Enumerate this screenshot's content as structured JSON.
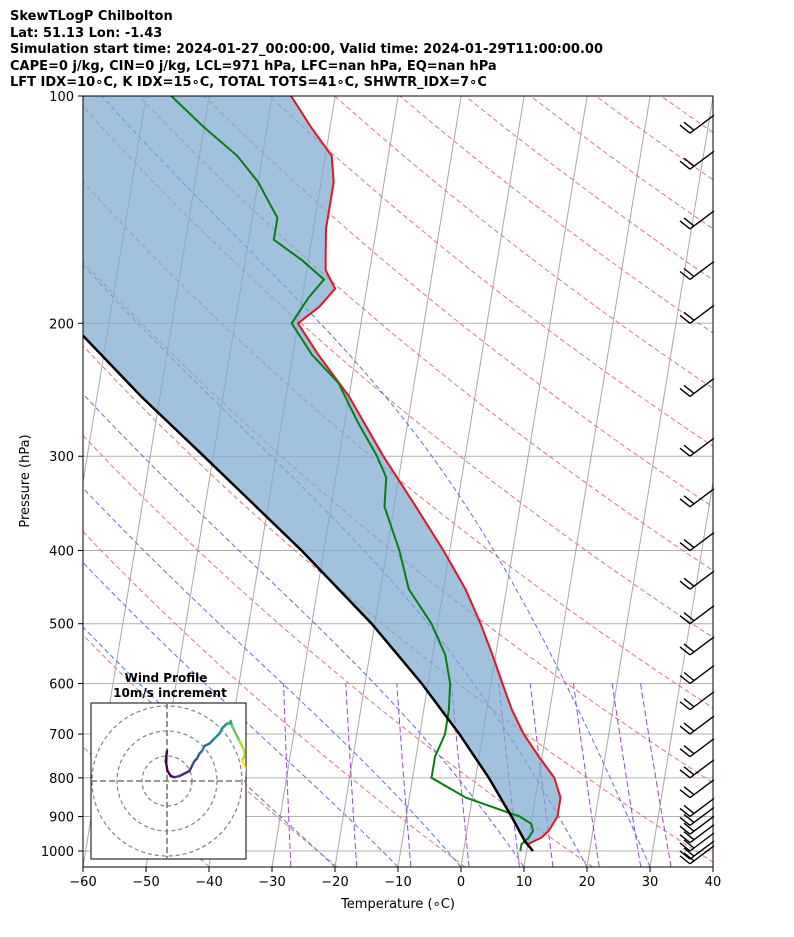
{
  "header": {
    "line1": "SkewTLogP Chilbolton",
    "line2": "Lat: 51.13   Lon: -1.43",
    "line3": "Simulation start time: 2024-01-27_00:00:00, Valid time: 2024-01-29T11:00:00.00",
    "line4": "CAPE=0 j/kg, CIN=0 j/kg, LCL=971 hPa, LFC=nan hPa, EQ=nan hPa",
    "line5": "LFT IDX=10∘C, K IDX=15∘C, TOTAL TOTS=41∘C, SHWTR_IDX=7∘C"
  },
  "chart_data": {
    "type": "line",
    "xlabel": "Temperature (∘C)",
    "ylabel": "Pressure (hPa)",
    "xlim": [
      -60,
      40
    ],
    "ylim": [
      1050,
      100
    ],
    "y_scale": "log",
    "skew": true,
    "grid": true,
    "x_ticks": [
      -60,
      -50,
      -40,
      -30,
      -20,
      -10,
      0,
      10,
      20,
      30,
      40
    ],
    "y_ticks": [
      100,
      200,
      300,
      400,
      500,
      600,
      700,
      800,
      900,
      1000
    ],
    "series": [
      {
        "role": "temperature",
        "color": "#e8131b",
        "points": [
          [
            1000,
            11
          ],
          [
            980,
            10
          ],
          [
            960,
            12
          ],
          [
            940,
            13
          ],
          [
            900,
            14
          ],
          [
            850,
            14
          ],
          [
            800,
            12.5
          ],
          [
            750,
            9.5
          ],
          [
            700,
            6.5
          ],
          [
            650,
            4
          ],
          [
            600,
            1.8
          ],
          [
            550,
            -0.5
          ],
          [
            500,
            -3.2
          ],
          [
            450,
            -6.5
          ],
          [
            400,
            -11
          ],
          [
            350,
            -16.5
          ],
          [
            300,
            -23
          ],
          [
            250,
            -30
          ],
          [
            220,
            -36
          ],
          [
            200,
            -40
          ],
          [
            190,
            -37
          ],
          [
            180,
            -35
          ],
          [
            170,
            -37
          ],
          [
            160,
            -37.5
          ],
          [
            150,
            -38
          ],
          [
            140,
            -38
          ],
          [
            130,
            -38
          ],
          [
            120,
            -39
          ],
          [
            110,
            -43
          ],
          [
            100,
            -47
          ]
        ]
      },
      {
        "role": "dewpoint",
        "color": "#0a7d12",
        "points": [
          [
            1000,
            9
          ],
          [
            980,
            9
          ],
          [
            960,
            10
          ],
          [
            940,
            10.5
          ],
          [
            920,
            10
          ],
          [
            900,
            8
          ],
          [
            850,
            -1
          ],
          [
            800,
            -7
          ],
          [
            750,
            -7
          ],
          [
            700,
            -6
          ],
          [
            650,
            -6
          ],
          [
            600,
            -6.5
          ],
          [
            550,
            -8
          ],
          [
            500,
            -11
          ],
          [
            450,
            -15.5
          ],
          [
            400,
            -18
          ],
          [
            350,
            -21.5
          ],
          [
            320,
            -22
          ],
          [
            300,
            -24
          ],
          [
            270,
            -28
          ],
          [
            240,
            -32
          ],
          [
            220,
            -37
          ],
          [
            200,
            -41
          ],
          [
            185,
            -39
          ],
          [
            175,
            -37
          ],
          [
            165,
            -41
          ],
          [
            155,
            -46
          ],
          [
            145,
            -46
          ],
          [
            130,
            -50
          ],
          [
            120,
            -54
          ],
          [
            110,
            -60
          ],
          [
            100,
            -66
          ]
        ]
      },
      {
        "role": "parcel",
        "color": "#000000",
        "points": [
          [
            1000,
            11
          ],
          [
            971,
            9.5
          ],
          [
            900,
            6.7
          ],
          [
            800,
            2.1
          ],
          [
            700,
            -3.7
          ],
          [
            600,
            -11
          ],
          [
            500,
            -20.5
          ],
          [
            400,
            -33.5
          ],
          [
            300,
            -51.5
          ],
          [
            250,
            -63
          ],
          [
            200,
            -76
          ],
          [
            150,
            -92
          ],
          [
            100,
            -113
          ]
        ]
      }
    ],
    "barb_pressures": [
      1040,
      1025,
      1000,
      975,
      950,
      925,
      900,
      850,
      800,
      750,
      700,
      650,
      600,
      550,
      500,
      450,
      400,
      350,
      300,
      250,
      200,
      175,
      150,
      125,
      112
    ],
    "dry_adiabat_thetas_K": [
      210,
      230,
      250,
      270,
      290,
      310,
      330,
      350,
      370,
      390,
      410,
      430,
      450,
      470,
      490,
      510,
      530,
      550
    ],
    "moist_adiabat_starts_C": [
      -20,
      -10,
      0,
      10,
      20,
      30
    ],
    "mixing_ratios_gkg": [
      0.4,
      1,
      2,
      4,
      7,
      10,
      16,
      24,
      32
    ],
    "hodograph": {
      "title": "Wind Profile",
      "subtitle": "10m/s increment",
      "rings": [
        10,
        20,
        30
      ],
      "points": [
        [
          0,
          12
        ],
        [
          -0.5,
          8
        ],
        [
          0.2,
          4
        ],
        [
          1.5,
          2
        ],
        [
          3,
          1.5
        ],
        [
          5,
          2
        ],
        [
          7,
          3
        ],
        [
          9,
          4
        ],
        [
          10,
          6
        ],
        [
          11,
          8
        ],
        [
          12,
          9
        ],
        [
          13,
          11
        ],
        [
          14,
          12
        ],
        [
          15,
          14
        ],
        [
          17,
          15
        ],
        [
          19,
          17
        ],
        [
          21,
          19
        ],
        [
          22,
          21
        ],
        [
          23,
          22
        ],
        [
          24,
          23
        ],
        [
          25,
          23
        ],
        [
          25.5,
          24
        ],
        [
          26,
          22
        ],
        [
          26.5,
          21
        ],
        [
          27,
          20
        ],
        [
          28,
          18
        ],
        [
          29,
          16
        ],
        [
          30,
          14
        ],
        [
          31,
          12
        ],
        [
          31,
          10
        ],
        [
          30,
          8
        ],
        [
          31,
          6
        ],
        [
          32,
          4
        ],
        [
          32,
          2
        ]
      ]
    }
  }
}
